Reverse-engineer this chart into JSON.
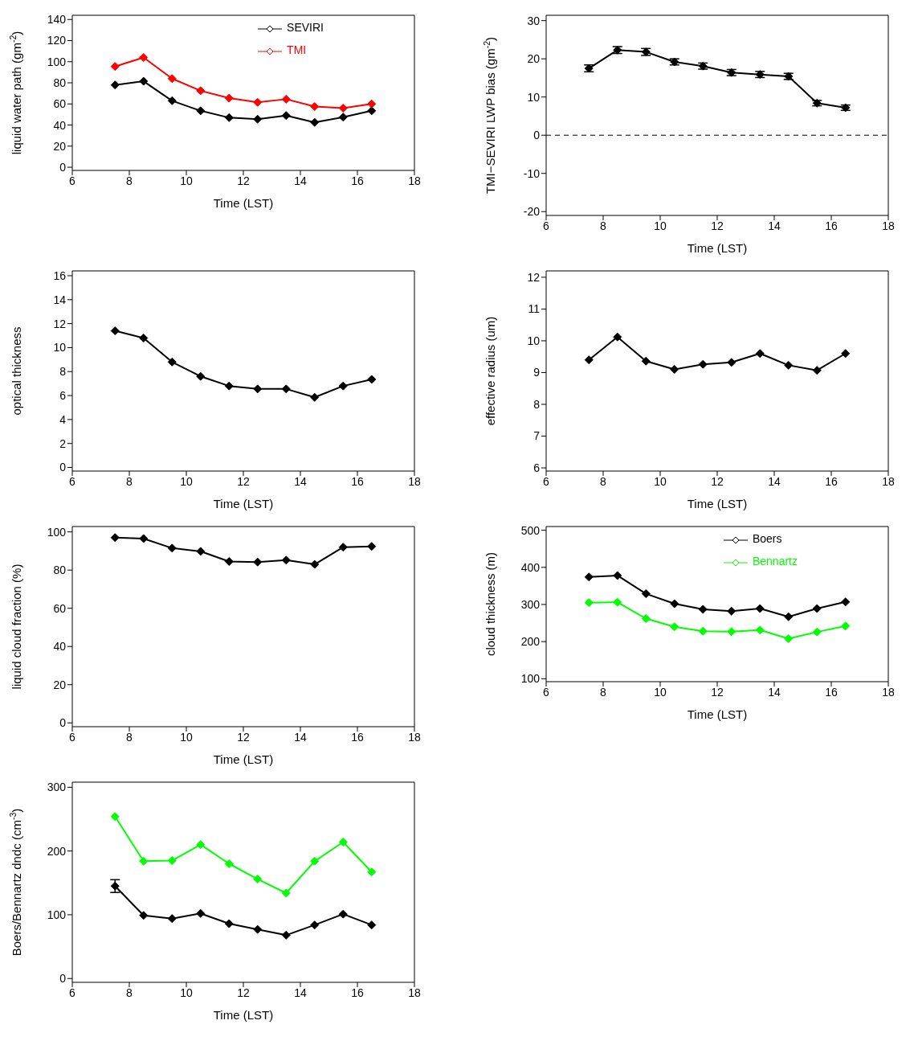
{
  "chart_data": [
    {
      "type": "line",
      "xlabel": "Time (LST)",
      "ylabel": "liquid water path (gm$^{-2}$)",
      "x": [
        7.5,
        8.5,
        9.5,
        10.5,
        11.5,
        12.5,
        13.5,
        14.5,
        15.5,
        16.5
      ],
      "xlim": [
        6,
        18
      ],
      "xticks": [
        6,
        8,
        10,
        12,
        14,
        16,
        18
      ],
      "ylim": [
        -3,
        144
      ],
      "yticks": [
        0,
        20,
        40,
        60,
        80,
        100,
        120,
        140
      ],
      "marker": "diamond",
      "legend": "top right",
      "series": [
        {
          "name": "SEVIRI",
          "color": "#000000",
          "values": [
            78,
            81.5,
            63,
            53.5,
            47,
            45.5,
            49,
            42.5,
            47.5,
            53.5
          ]
        },
        {
          "name": "TMI",
          "color": "#ff0000",
          "values": [
            95.5,
            104,
            84,
            72.5,
            65.5,
            61.5,
            64.5,
            57.5,
            56,
            60
          ]
        }
      ]
    },
    {
      "type": "line",
      "xlabel": "Time (LST)",
      "ylabel": "TMI−SEVIRI LWP bias (gm$^{-2}$)",
      "x": [
        7.5,
        8.5,
        9.5,
        10.5,
        11.5,
        12.5,
        13.5,
        14.5,
        15.5,
        16.5
      ],
      "xlim": [
        6,
        18
      ],
      "xticks": [
        6,
        8,
        10,
        12,
        14,
        16,
        18
      ],
      "ylim": [
        -21,
        31.4
      ],
      "yticks": [
        -20,
        -10,
        0,
        10,
        20,
        30
      ],
      "marker": "diamond",
      "ref_lines": [
        {
          "axis": "y",
          "value": 0,
          "color": "#000000",
          "line_style": "dashed"
        }
      ],
      "series": [
        {
          "color": "#000000",
          "values": [
            17.5,
            22.3,
            21.8,
            19.2,
            18.1,
            16.4,
            15.9,
            15.4,
            8.4,
            7.2
          ],
          "errors": [
            0.9,
            0.9,
            0.9,
            0.8,
            0.8,
            0.8,
            0.8,
            0.8,
            0.7,
            0.7
          ]
        }
      ]
    },
    {
      "type": "line",
      "xlabel": "Time (LST)",
      "ylabel": "optical thickness",
      "x": [
        7.5,
        8.5,
        9.5,
        10.5,
        11.5,
        12.5,
        13.5,
        14.5,
        15.5,
        16.5
      ],
      "xlim": [
        6,
        18
      ],
      "xticks": [
        6,
        8,
        10,
        12,
        14,
        16,
        18
      ],
      "ylim": [
        -0.3,
        16.4
      ],
      "yticks": [
        0,
        2,
        4,
        6,
        8,
        10,
        12,
        14,
        16
      ],
      "marker": "diamond",
      "series": [
        {
          "color": "#000000",
          "values": [
            11.4,
            10.8,
            8.8,
            7.6,
            6.8,
            6.55,
            6.55,
            5.85,
            6.8,
            7.35
          ]
        }
      ]
    },
    {
      "type": "line",
      "xlabel": "Time (LST)",
      "ylabel": "effective radius (um)",
      "x": [
        7.5,
        8.5,
        9.5,
        10.5,
        11.5,
        12.5,
        13.5,
        14.5,
        15.5,
        16.5
      ],
      "xlim": [
        6,
        18
      ],
      "xticks": [
        6,
        8,
        10,
        12,
        14,
        16,
        18
      ],
      "ylim": [
        5.9,
        12.2
      ],
      "yticks": [
        6,
        7,
        8,
        9,
        10,
        11,
        12
      ],
      "marker": "diamond",
      "series": [
        {
          "color": "#000000",
          "values": [
            9.4,
            10.12,
            9.36,
            9.1,
            9.26,
            9.32,
            9.6,
            9.23,
            9.07,
            9.6
          ]
        }
      ]
    },
    {
      "type": "line",
      "xlabel": "Time (LST)",
      "ylabel": "liquid cloud fraction (%)",
      "x": [
        7.5,
        8.5,
        9.5,
        10.5,
        11.5,
        12.5,
        13.5,
        14.5,
        15.5,
        16.5
      ],
      "xlim": [
        6,
        18
      ],
      "xticks": [
        6,
        8,
        10,
        12,
        14,
        16,
        18
      ],
      "ylim": [
        -2,
        102.8
      ],
      "yticks": [
        0,
        20,
        40,
        60,
        80,
        100
      ],
      "marker": "diamond",
      "series": [
        {
          "color": "#000000",
          "values": [
            97,
            96.5,
            91.5,
            89.8,
            84.5,
            84.2,
            85.2,
            83,
            92,
            92.4
          ]
        }
      ]
    },
    {
      "type": "line",
      "xlabel": "Time (LST)",
      "ylabel": "cloud thickness (m)",
      "x": [
        7.5,
        8.5,
        9.5,
        10.5,
        11.5,
        12.5,
        13.5,
        14.5,
        15.5,
        16.5
      ],
      "xlim": [
        6,
        18
      ],
      "xticks": [
        6,
        8,
        10,
        12,
        14,
        16,
        18
      ],
      "ylim": [
        92,
        510
      ],
      "yticks": [
        100,
        200,
        300,
        400,
        500
      ],
      "marker": "diamond",
      "legend": "top right",
      "series": [
        {
          "name": "Boers",
          "color": "#000000",
          "values": [
            374,
            378,
            329,
            302,
            287,
            282,
            289,
            267,
            289,
            307
          ]
        },
        {
          "name": "Bennartz",
          "color": "#00ff00",
          "values": [
            305,
            306,
            262,
            240,
            228,
            227,
            231,
            208,
            226,
            242
          ]
        }
      ]
    },
    {
      "type": "line",
      "xlabel": "Time (LST)",
      "ylabel": "Boers/Bennartz dndc (cm$^{-3}$)",
      "x": [
        7.5,
        8.5,
        9.5,
        10.5,
        11.5,
        12.5,
        13.5,
        14.5,
        15.5,
        16.5
      ],
      "xlim": [
        6,
        18
      ],
      "xticks": [
        6,
        8,
        10,
        12,
        14,
        16,
        18
      ],
      "ylim": [
        -6,
        308
      ],
      "yticks": [
        0,
        100,
        200,
        300
      ],
      "marker": "diamond",
      "series": [
        {
          "color": "#00ff00",
          "values": [
            254,
            184,
            185,
            210,
            180,
            156,
            134,
            184,
            214,
            167
          ]
        },
        {
          "color": "#000000",
          "values": [
            145,
            99,
            94,
            102,
            86,
            77,
            68,
            84,
            101,
            84
          ],
          "errors": [
            10,
            null,
            null,
            null,
            null,
            null,
            null,
            null,
            null,
            null
          ]
        }
      ]
    }
  ]
}
